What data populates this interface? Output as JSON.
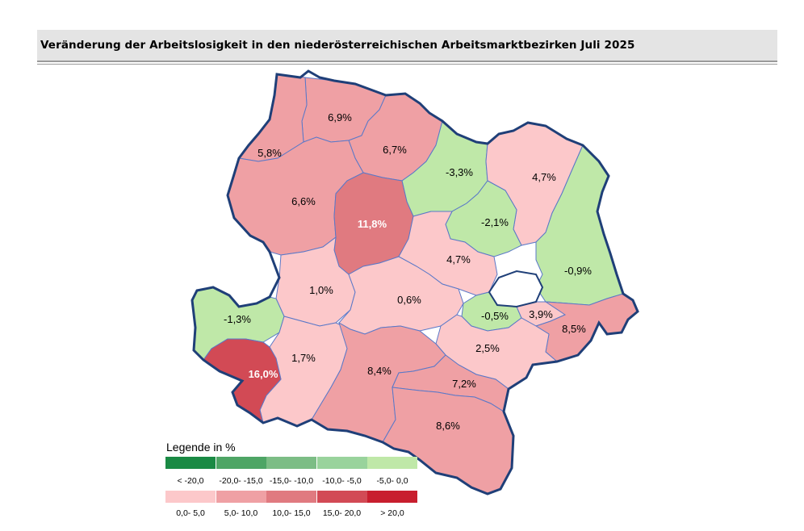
{
  "title": "Veränderung der Arbeitslosigkeit in den niederösterreichischen Arbeitsmarktbezirken Juli 2025",
  "colors": {
    "border": "#1f3f78",
    "inner_border": "#5a78c8",
    "lake": "#ffffff"
  },
  "districts": [
    {
      "value": "6,9%",
      "color": "#efa0a4"
    },
    {
      "value": "5,8%",
      "color": "#efa0a4"
    },
    {
      "value": "6,7%",
      "color": "#efa0a4"
    },
    {
      "value": "-3,3%",
      "color": "#bfe8a8"
    },
    {
      "value": "4,7%",
      "color": "#fcc8ca"
    },
    {
      "value": "6,6%",
      "color": "#efa0a4"
    },
    {
      "value": "11,8%",
      "color": "#e07a80"
    },
    {
      "value": "-2,1%",
      "color": "#bfe8a8"
    },
    {
      "value": "4,7%",
      "color": "#fcc8ca"
    },
    {
      "value": "-0,9%",
      "color": "#bfe8a8"
    },
    {
      "value": "1,0%",
      "color": "#fcc8ca"
    },
    {
      "value": "0,6%",
      "color": "#fcc8ca"
    },
    {
      "value": "-0,5%",
      "color": "#bfe8a8"
    },
    {
      "value": "3,9%",
      "color": "#fcc8ca"
    },
    {
      "value": "-1,3%",
      "color": "#bfe8a8"
    },
    {
      "value": "8,5%",
      "color": "#efa0a4"
    },
    {
      "value": "1,7%",
      "color": "#fcc8ca"
    },
    {
      "value": "2,5%",
      "color": "#fcc8ca"
    },
    {
      "value": "16,0%",
      "color": "#d24a55"
    },
    {
      "value": "8,4%",
      "color": "#efa0a4"
    },
    {
      "value": "7,2%",
      "color": "#efa0a4"
    },
    {
      "value": "8,6%",
      "color": "#efa0a4"
    }
  ],
  "legend": {
    "title": "Legende in %",
    "negative": [
      {
        "label": "< -20,0",
        "color": "#1a8a44"
      },
      {
        "label": "-20,0- -15,0",
        "color": "#4ea565"
      },
      {
        "label": "-15,0- -10,0",
        "color": "#7cbd85"
      },
      {
        "label": "-10,0- -5,0",
        "color": "#99d39c"
      },
      {
        "label": "-5,0- 0,0",
        "color": "#bfe8a8"
      }
    ],
    "positive": [
      {
        "label": "0,0- 5,0",
        "color": "#fcc8ca"
      },
      {
        "label": "5,0- 10,0",
        "color": "#efa0a4"
      },
      {
        "label": "10,0- 15,0",
        "color": "#e07a80"
      },
      {
        "label": "15,0- 20,0",
        "color": "#d24a55"
      },
      {
        "label": "> 20,0",
        "color": "#c81e2e"
      }
    ]
  }
}
